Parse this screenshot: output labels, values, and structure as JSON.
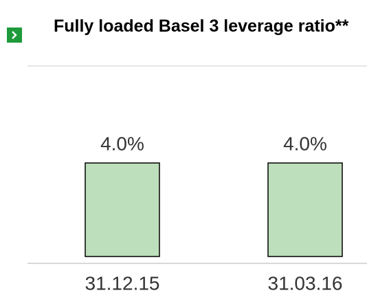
{
  "chart_data": {
    "type": "bar",
    "title": "Fully loaded Basel 3 leverage ratio**",
    "categories": [
      "31.12.15",
      "31.03.16"
    ],
    "values": [
      4.0,
      4.0
    ],
    "value_labels": [
      "4.0%",
      "4.0%"
    ],
    "color": "#bddfbb"
  }
}
